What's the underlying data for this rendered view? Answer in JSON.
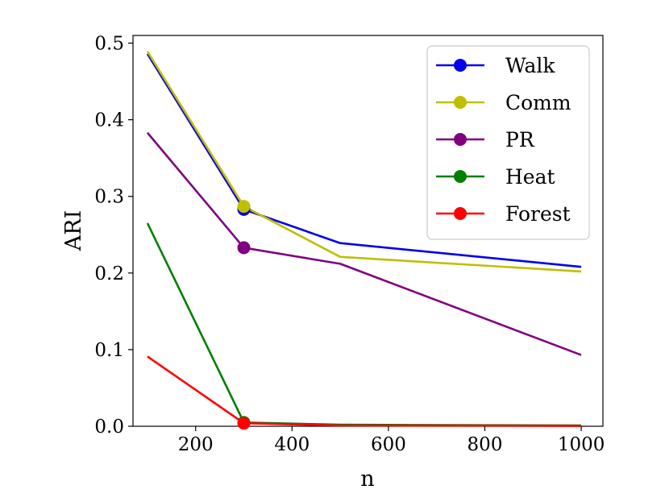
{
  "chart_data": {
    "type": "line",
    "title": "",
    "xlabel": "n",
    "ylabel": "ARI",
    "xlim": [
      70,
      1045
    ],
    "ylim": [
      0.0,
      0.51
    ],
    "xticks": [
      200,
      400,
      600,
      800,
      1000
    ],
    "yticks": [
      0.0,
      0.1,
      0.2,
      0.3,
      0.4,
      0.5
    ],
    "xtick_labels": [
      "200",
      "400",
      "600",
      "800",
      "1000"
    ],
    "ytick_labels": [
      "0.0",
      "0.1",
      "0.2",
      "0.3",
      "0.4",
      "0.5"
    ],
    "legend_position": "top-right",
    "x": [
      100,
      300,
      500,
      1000
    ],
    "marker_index": 1,
    "series": [
      {
        "name": "Walk",
        "color": "#0000ee",
        "values": [
          0.486,
          0.283,
          0.239,
          0.208
        ]
      },
      {
        "name": "Comm",
        "color": "#bfbf00",
        "values": [
          0.489,
          0.287,
          0.221,
          0.202
        ]
      },
      {
        "name": "PR",
        "color": "#800080",
        "values": [
          0.383,
          0.233,
          0.212,
          0.093
        ]
      },
      {
        "name": "Heat",
        "color": "#008000",
        "values": [
          0.265,
          0.005,
          0.002,
          0.001
        ]
      },
      {
        "name": "Forest",
        "color": "#ff0000",
        "values": [
          0.091,
          0.004,
          0.001,
          0.0005
        ]
      }
    ]
  }
}
